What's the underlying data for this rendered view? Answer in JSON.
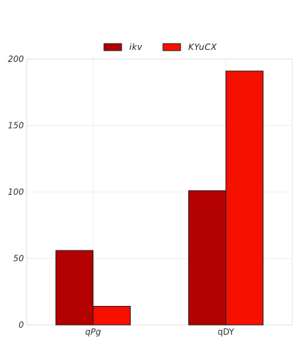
{
  "chart_data": {
    "type": "bar",
    "categories": [
      "qPg",
      "qDY"
    ],
    "category_label_styles": [
      "italic",
      "normal"
    ],
    "series": [
      {
        "name": "ikv",
        "values": [
          56,
          101
        ],
        "color": "#b30000"
      },
      {
        "name": "KYuCX",
        "values": [
          14,
          191
        ],
        "color": "#f51000"
      }
    ],
    "ylim": [
      0,
      200
    ],
    "yticks": [
      0,
      50,
      100,
      150,
      200
    ],
    "title": "",
    "xlabel": "",
    "ylabel": "",
    "grid": true,
    "legend_position": "top-center"
  }
}
